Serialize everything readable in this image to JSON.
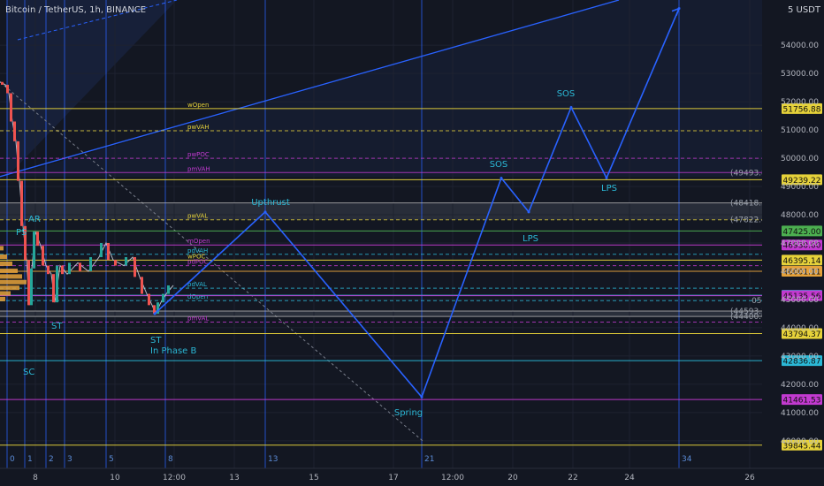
{
  "header": {
    "title": "Bitcoin / TetherUS, 1h, BINANCE",
    "currency": "USDT",
    "currency_prefix": "5"
  },
  "chart_data": {
    "type": "line",
    "title": "Bitcoin / TetherUS, 1h, BINANCE",
    "ylim": [
      38400,
      55600
    ],
    "y_ticks": [
      {
        "label": "54000.00",
        "value": 54000
      },
      {
        "label": "53000.00",
        "value": 53000
      },
      {
        "label": "52000.00",
        "value": 52000
      },
      {
        "label": "51000.00",
        "value": 51000
      },
      {
        "label": "50000.00",
        "value": 50000
      },
      {
        "label": "49000.00",
        "value": 49000
      },
      {
        "label": "48000.00",
        "value": 48000
      },
      {
        "label": "47000.00",
        "value": 47000
      },
      {
        "label": "46000.00",
        "value": 46000
      },
      {
        "label": "45000.00",
        "value": 45000
      },
      {
        "label": "44000.00",
        "value": 44000
      },
      {
        "label": "43000.00",
        "value": 43000
      },
      {
        "label": "42000.00",
        "value": 42000
      },
      {
        "label": "41000.00",
        "value": 41000
      },
      {
        "label": "40000.00",
        "value": 40000
      },
      {
        "label": "39000.00",
        "value": 39000
      }
    ],
    "x_ticks": [
      "8",
      "10",
      "12:00",
      "13",
      "15",
      "17",
      "12:00",
      "20",
      "22",
      "24",
      "26"
    ],
    "vertical_lines": [
      "0",
      "1",
      "2",
      "3",
      "5",
      "8",
      "13",
      "21",
      "34"
    ],
    "levels": [
      {
        "name": "wOpen",
        "value": 51756.88,
        "tag": "51756.88",
        "color": "#e6d23a",
        "style": "solid",
        "suffix": "W",
        "tagged": true
      },
      {
        "name": "pwVAH",
        "value": 50970,
        "color": "#e6d23a",
        "style": "dashed",
        "suffix": "W",
        "tagged": false
      },
      {
        "name": "pwPOC",
        "value": 50000,
        "color": "#c23ad0",
        "style": "dashed",
        "tagged": false
      },
      {
        "name": "pmVAH",
        "value": 49493.84,
        "tag": "(49493.84)",
        "color": "#c23ad0",
        "style": "solid",
        "tagged": false
      },
      {
        "name": "",
        "value": 49239.22,
        "tag": "49239.22",
        "color": "#e6d23a",
        "style": "solid",
        "tagged": true
      },
      {
        "name": "",
        "value": 48418.58,
        "tag": "(48418.58)",
        "color": "#b5b5b5",
        "style": "solid",
        "tagged": false
      },
      {
        "name": "pwVAL",
        "value": 47822,
        "tag": "(47822.40)",
        "color": "#e6d23a",
        "style": "dashed",
        "tagged": false
      },
      {
        "name": "",
        "value": 47425.0,
        "tag": "47425.00",
        "color": "#4caf50",
        "style": "solid",
        "tagged": true
      },
      {
        "name": "mOpen",
        "value": 46930.0,
        "tag": "46930.00",
        "color": "#c23ad0",
        "style": "solid",
        "tagged": true
      },
      {
        "name": "pdVAH",
        "value": 46600,
        "color": "#2bb8d6",
        "style": "dashed",
        "suffix": "H",
        "tagged": false
      },
      {
        "name": "wPOC",
        "value": 46395.14,
        "tag": "46395.14",
        "color": "#e6d23a",
        "style": "solid",
        "suffix": "4H",
        "tagged": true
      },
      {
        "name": "pdPOC",
        "value": 46200,
        "color": "#c23ad0",
        "style": "dashed",
        "tagged": false
      },
      {
        "name": "",
        "value": 46001.11,
        "tag": "46001.11",
        "color": "#e6a23a",
        "style": "solid",
        "suffix": "4H",
        "tagged": true
      },
      {
        "name": "pdVAL",
        "value": 45400,
        "color": "#2bb8d6",
        "style": "dashed",
        "tagged": false
      },
      {
        "name": "",
        "value": 45150.0,
        "tag": "45150.00",
        "color": "#2bb8d6",
        "style": "solid",
        "tagged": true
      },
      {
        "name": "dOpen",
        "value": 44960,
        "tag": "05:06",
        "color": "#2bb8d6",
        "style": "dashed",
        "tagged": false
      },
      {
        "name": "",
        "value": 44593,
        "tag": "(44593.35)",
        "color": "#b5b5b5",
        "style": "solid",
        "tagged": false
      },
      {
        "name": "",
        "value": 44400,
        "tag": "(44400.91)",
        "color": "#b5b5b5",
        "style": "solid",
        "tagged": false
      },
      {
        "name": "",
        "value": 45135.56,
        "tag": "45135.56",
        "color": "#c23ad0",
        "style": "solid",
        "tagged": true
      },
      {
        "name": "pmVAL",
        "value": 44200,
        "color": "#c23ad0",
        "style": "dashed",
        "tagged": false
      },
      {
        "name": "",
        "value": 43794.37,
        "tag": "43794.37",
        "color": "#e6d23a",
        "style": "solid",
        "suffix": "W",
        "tagged": true
      },
      {
        "name": "",
        "value": 42836.87,
        "tag": "42836.87",
        "color": "#2bb8d6",
        "style": "solid",
        "suffix": "D",
        "tagged": true
      },
      {
        "name": "",
        "value": 41461.53,
        "tag": "41461.53",
        "color": "#c23ad0",
        "style": "solid",
        "suffix": "M",
        "tagged": true
      },
      {
        "name": "",
        "value": 39845.44,
        "tag": "39845.44",
        "color": "#e6d23a",
        "style": "solid",
        "suffix": "W",
        "tagged": true
      }
    ],
    "projection": [
      {
        "x": 175,
        "y": 44500
      },
      {
        "x": 300,
        "y": 48100
      },
      {
        "x": 477,
        "y": 41550
      },
      {
        "x": 567,
        "y": 49300
      },
      {
        "x": 598,
        "y": 48100
      },
      {
        "x": 646,
        "y": 51800
      },
      {
        "x": 686,
        "y": 49300
      },
      {
        "x": 768,
        "y": 55300
      }
    ],
    "annotations": [
      {
        "text": "Upthrust",
        "color": "#2bb8d6"
      },
      {
        "text": "SOS",
        "color": "#2bb8d6"
      },
      {
        "text": "SOS",
        "color": "#2bb8d6"
      },
      {
        "text": "LPS",
        "color": "#2bb8d6"
      },
      {
        "text": "LPS",
        "color": "#2bb8d6"
      },
      {
        "text": "Spring",
        "color": "#2bb8d6"
      },
      {
        "text": "AR",
        "color": "#2bb8d6"
      },
      {
        "text": "PS",
        "color": "#2bb8d6"
      },
      {
        "text": "ST",
        "color": "#2bb8d6"
      },
      {
        "text": "ST",
        "color": "#2bb8d6"
      },
      {
        "text": "In Phase B",
        "color": "#2bb8d6"
      },
      {
        "text": "SC",
        "color": "#2bb8d6"
      }
    ]
  }
}
